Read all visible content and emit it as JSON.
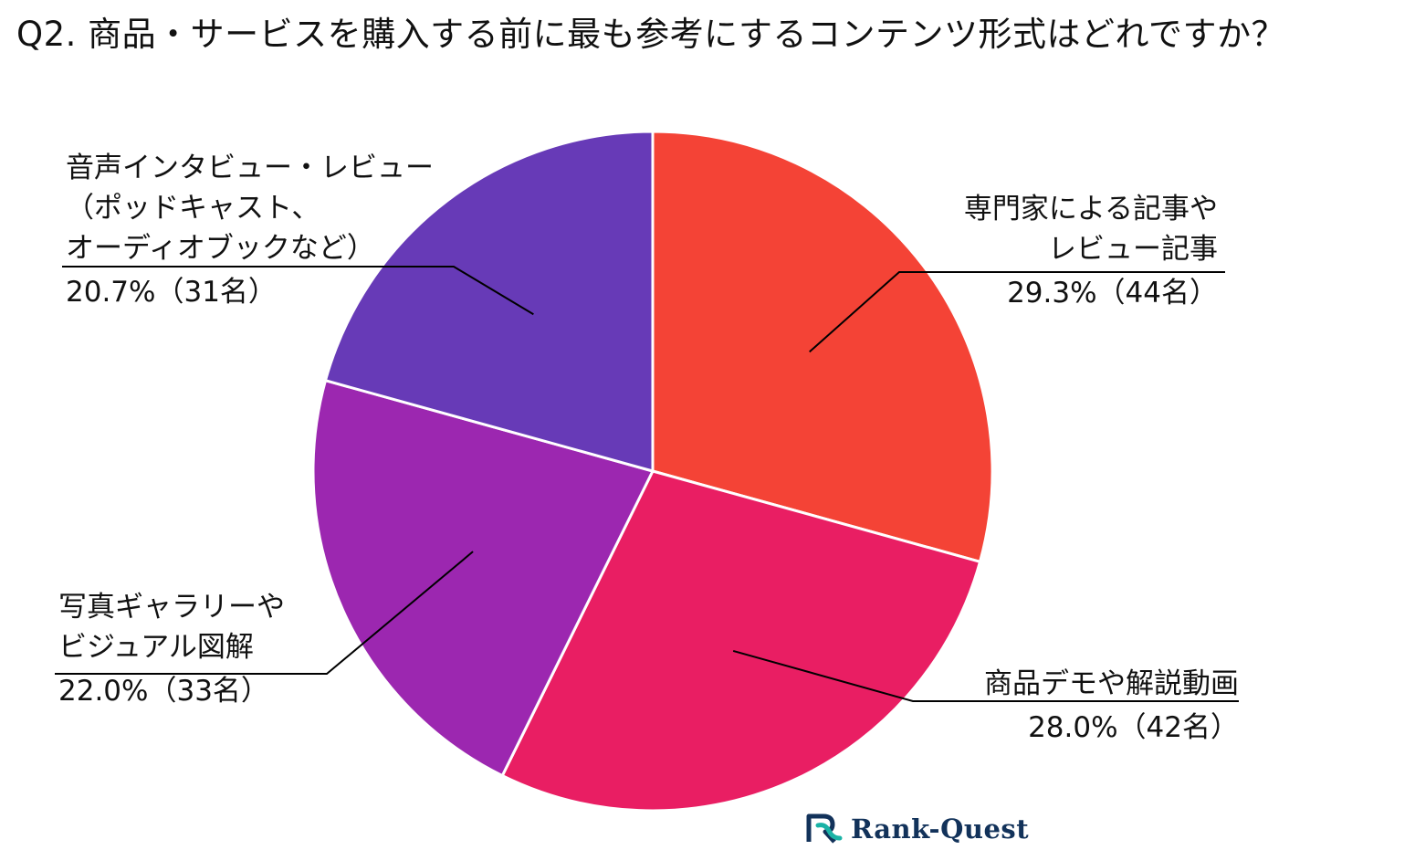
{
  "title": "Q2. 商品・サービスを購入する前に最も参考にするコンテンツ形式はどれですか？",
  "chart_data": {
    "type": "pie",
    "slices": [
      {
        "label_lines": [
          "専門家による記事や",
          "レビュー記事"
        ],
        "value": 29.3,
        "count_label": "29.3%（44名）",
        "color": "#F44336"
      },
      {
        "label_lines": [
          "商品デモや解説動画"
        ],
        "value": 28.0,
        "count_label": "28.0%（42名）",
        "color": "#E91E63"
      },
      {
        "label_lines": [
          "写真ギャラリーや",
          "ビジュアル図解"
        ],
        "value": 22.0,
        "count_label": "22.0%（33名）",
        "color": "#9C27B0"
      },
      {
        "label_lines": [
          "音声インタビュー・レビュー",
          "（ポッドキャスト、",
          "オーディオブックなど）"
        ],
        "value": 20.7,
        "count_label": "20.7%（31名）",
        "color": "#673AB7"
      }
    ]
  },
  "logo": {
    "text": "Rank-Quest",
    "color": "#12325a",
    "accent": "#1ab3a6"
  }
}
